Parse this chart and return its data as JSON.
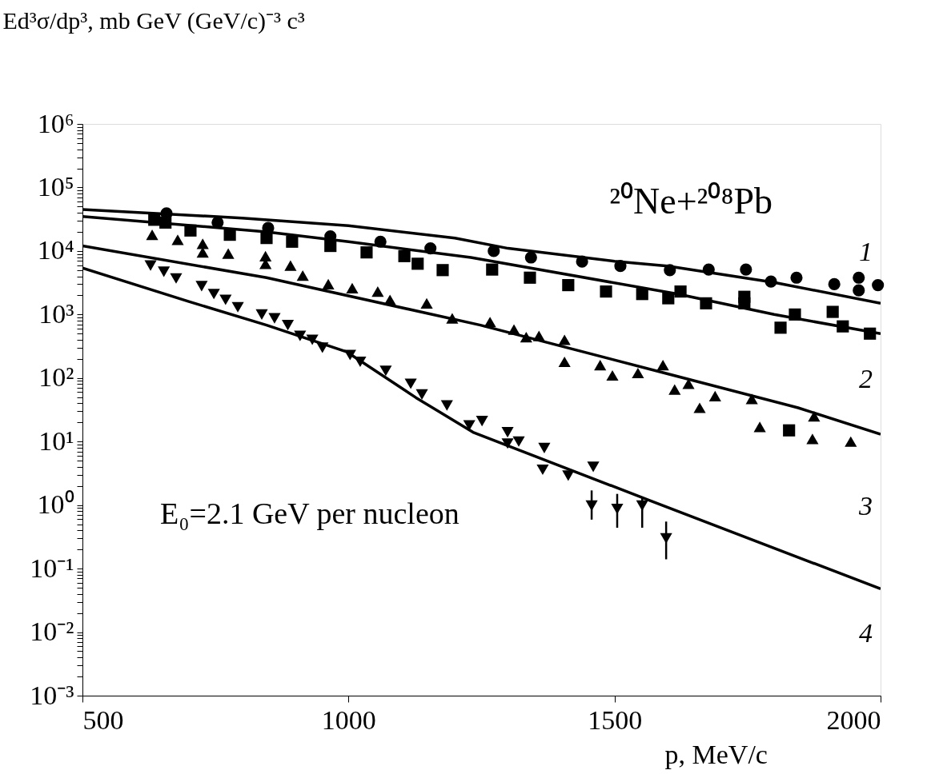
{
  "chart_data": {
    "type": "scatter",
    "xlabel": "p,  MeV/c",
    "ylabel": "Ed³σ/dp³,  mb GeV (GeV/c)⁻³ c³",
    "log": "y",
    "grid": false,
    "xlim": [
      500,
      2000
    ],
    "xticks": [
      500,
      1000,
      1500,
      2000
    ],
    "ylim": [
      0.001,
      1000000
    ],
    "yticks": [
      {
        "value": 0.001,
        "label": "10⁻³"
      },
      {
        "value": 0.01,
        "label": "10⁻²"
      },
      {
        "value": 0.1,
        "label": "10⁻¹"
      },
      {
        "value": 1,
        "label": "10⁰"
      },
      {
        "value": 10,
        "label": "10¹"
      },
      {
        "value": 100,
        "label": "10²"
      },
      {
        "value": 1000,
        "label": "10³"
      },
      {
        "value": 10000,
        "label": "10⁴"
      },
      {
        "value": 100000,
        "label": "10⁵"
      },
      {
        "value": 1000000,
        "label": "10⁶"
      },
      {
        "value": 0.002,
        "label": null
      },
      {
        "value": 0.003,
        "label": null
      },
      {
        "value": 0.004,
        "label": null
      },
      {
        "value": 0.005,
        "label": null
      },
      {
        "value": 0.006,
        "label": null
      },
      {
        "value": 0.007,
        "label": null
      },
      {
        "value": 0.008,
        "label": null
      },
      {
        "value": 0.009,
        "label": null
      },
      {
        "value": 0.02,
        "label": null
      },
      {
        "value": 0.03,
        "label": null
      },
      {
        "value": 0.04,
        "label": null
      },
      {
        "value": 0.05,
        "label": null
      },
      {
        "value": 0.06,
        "label": null
      },
      {
        "value": 0.07,
        "label": null
      },
      {
        "value": 0.08,
        "label": null
      },
      {
        "value": 0.09,
        "label": null
      },
      {
        "value": 0.2,
        "label": null
      },
      {
        "value": 0.3,
        "label": null
      },
      {
        "value": 0.4,
        "label": null
      },
      {
        "value": 0.5,
        "label": null
      },
      {
        "value": 0.6,
        "label": null
      },
      {
        "value": 0.7,
        "label": null
      },
      {
        "value": 0.8,
        "label": null
      },
      {
        "value": 0.9,
        "label": null
      },
      {
        "value": 2,
        "label": null
      },
      {
        "value": 3,
        "label": null
      },
      {
        "value": 4,
        "label": null
      },
      {
        "value": 5,
        "label": null
      },
      {
        "value": 6,
        "label": null
      },
      {
        "value": 7,
        "label": null
      },
      {
        "value": 8,
        "label": null
      },
      {
        "value": 9,
        "label": null
      },
      {
        "value": 20,
        "label": null
      },
      {
        "value": 30,
        "label": null
      },
      {
        "value": 40,
        "label": null
      },
      {
        "value": 50,
        "label": null
      },
      {
        "value": 60,
        "label": null
      },
      {
        "value": 70,
        "label": null
      },
      {
        "value": 80,
        "label": null
      },
      {
        "value": 90,
        "label": null
      },
      {
        "value": 200,
        "label": null
      },
      {
        "value": 300,
        "label": null
      },
      {
        "value": 400,
        "label": null
      },
      {
        "value": 500,
        "label": null
      },
      {
        "value": 600,
        "label": null
      },
      {
        "value": 700,
        "label": null
      },
      {
        "value": 800,
        "label": null
      },
      {
        "value": 900,
        "label": null
      },
      {
        "value": 2000,
        "label": null
      },
      {
        "value": 3000,
        "label": null
      },
      {
        "value": 4000,
        "label": null
      },
      {
        "value": 5000,
        "label": null
      },
      {
        "value": 6000,
        "label": null
      },
      {
        "value": 7000,
        "label": null
      },
      {
        "value": 8000,
        "label": null
      },
      {
        "value": 9000,
        "label": null
      },
      {
        "value": 20000,
        "label": null
      },
      {
        "value": 30000,
        "label": null
      },
      {
        "value": 40000,
        "label": null
      },
      {
        "value": 50000,
        "label": null
      },
      {
        "value": 60000,
        "label": null
      },
      {
        "value": 70000,
        "label": null
      },
      {
        "value": 80000,
        "label": null
      },
      {
        "value": 90000,
        "label": null
      },
      {
        "value": 200000,
        "label": null
      },
      {
        "value": 300000,
        "label": null
      },
      {
        "value": 400000,
        "label": null
      },
      {
        "value": 500000,
        "label": null
      },
      {
        "value": 600000,
        "label": null
      },
      {
        "value": 700000,
        "label": null
      },
      {
        "value": 800000,
        "label": null
      },
      {
        "value": 900000,
        "label": null
      }
    ],
    "series": [
      {
        "type": "line",
        "color": "#000000",
        "x": [
          500,
          800,
          1000,
          1200,
          1300,
          1500,
          1600,
          1800,
          2000
        ],
        "values": [
          45000,
          33000,
          25000,
          16000,
          11000,
          6900,
          5800,
          3200,
          1500
        ]
      },
      {
        "type": "line",
        "color": "#000000",
        "x": [
          500,
          846,
          1000,
          1230,
          1619,
          1800,
          2000
        ],
        "values": [
          35000,
          20000,
          14000,
          7900,
          2100,
          1000,
          500
        ]
      },
      {
        "type": "line",
        "color": "#000000",
        "x": [
          500,
          846,
          1248,
          1594,
          1845,
          2000
        ],
        "values": [
          12000,
          3800,
          680,
          120,
          34,
          13
        ]
      },
      {
        "type": "line",
        "color": "#000000",
        "x": [
          500,
          700,
          846,
          996,
          1127,
          1234,
          1564,
          2000
        ],
        "values": [
          5400,
          1600,
          680,
          260,
          49,
          14,
          1.2,
          0.048
        ]
      },
      {
        "marker": "circle",
        "color": "#000000",
        "x": [
          658,
          754,
          849,
          966,
          1060,
          1154,
          1273,
          1343,
          1439,
          1511,
          1604,
          1677,
          1747,
          1794,
          1842,
          1913,
          1959,
          1959,
          1995
        ],
        "values": [
          39000,
          28000,
          23000,
          17000,
          14000,
          11000,
          10000,
          7900,
          6800,
          5800,
          5000,
          5100,
          5100,
          3300,
          3800,
          3000,
          3800,
          2400,
          2900
        ]
      },
      {
        "marker": "square",
        "color": "#000000",
        "x": [
          635,
          656,
          703,
          777,
          846,
          894,
          966,
          1034,
          1105,
          1130,
          1177,
          1270,
          1341,
          1413,
          1484,
          1552,
          1601,
          1624,
          1672,
          1744,
          1744,
          1812,
          1828,
          1839,
          1910,
          1929,
          1980
        ],
        "values": [
          31000,
          28000,
          21000,
          18000,
          16000,
          14000,
          12000,
          9500,
          8300,
          6300,
          5000,
          5100,
          3800,
          2900,
          2300,
          2100,
          1800,
          2300,
          1500,
          1500,
          1900,
          620,
          15,
          1000,
          1100,
          650,
          500
        ]
      },
      {
        "marker": "triangle",
        "color": "#000000",
        "x": [
          631,
          679,
          726,
          726,
          774,
          844,
          844,
          891,
          914,
          962,
          1007,
          1055,
          1078,
          1147,
          1195,
          1266,
          1311,
          1334,
          1358,
          1406,
          1406,
          1473,
          1496,
          1544,
          1591,
          1613,
          1639,
          1660,
          1689,
          1758,
          1773,
          1872,
          1875,
          1944
        ],
        "values": [
          18000,
          15000,
          13000,
          9500,
          9100,
          8300,
          6300,
          5900,
          4100,
          3000,
          2600,
          2300,
          1700,
          1500,
          870,
          760,
          580,
          440,
          460,
          400,
          180,
          160,
          110,
          120,
          160,
          66,
          81,
          34,
          52,
          47,
          17,
          11,
          25,
          10
        ]
      },
      {
        "marker": "triangle-down",
        "color": "#000000",
        "x": [
          628,
          653,
          676,
          724,
          747,
          769,
          792,
          837,
          861,
          886,
          909,
          932,
          951,
          1003,
          1022,
          1070,
          1117,
          1138,
          1185,
          1227,
          1251,
          1299,
          1299,
          1320,
          1368,
          1365,
          1413,
          1460,
          1457,
          1505,
          1552,
          1597
        ],
        "values": [
          5900,
          4700,
          3700,
          2800,
          2100,
          1700,
          1300,
          1000,
          870,
          680,
          460,
          400,
          300,
          230,
          180,
          130,
          81,
          55,
          37,
          18,
          21,
          14,
          9.3,
          10,
          7.9,
          3.6,
          2.9,
          4.0,
          0.98,
          0.87,
          0.98,
          0.3
        ],
        "errors": [
          null,
          null,
          null,
          null,
          null,
          null,
          null,
          null,
          null,
          null,
          null,
          null,
          null,
          null,
          null,
          null,
          null,
          null,
          null,
          null,
          null,
          null,
          null,
          null,
          null,
          null,
          null,
          null,
          [
            0.59,
            1.7
          ],
          [
            0.44,
            1.5
          ],
          [
            0.44,
            1.35
          ],
          [
            0.14,
            0.55
          ]
        ]
      }
    ],
    "annotations": [
      "²⁰Ne+²⁰⁸Pb",
      "E₀=2.1 GeV per nucleon",
      "1",
      "2",
      "3",
      "4"
    ]
  }
}
